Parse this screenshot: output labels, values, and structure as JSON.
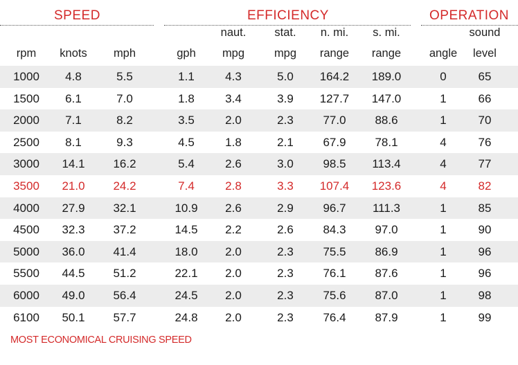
{
  "groups": {
    "speed": "SPEED",
    "efficiency": "EFFICIENCY",
    "operation": "OPERATION"
  },
  "headers": {
    "top": [
      "",
      "",
      "",
      "",
      "naut.",
      "stat.",
      "n. mi.",
      "s. mi.",
      "",
      "sound"
    ],
    "bottom": [
      "rpm",
      "knots",
      "mph",
      "gph",
      "mpg",
      "mpg",
      "range",
      "range",
      "angle",
      "level"
    ]
  },
  "rows": [
    [
      "1000",
      "4.8",
      "5.5",
      "1.1",
      "4.3",
      "5.0",
      "164.2",
      "189.0",
      "0",
      "65"
    ],
    [
      "1500",
      "6.1",
      "7.0",
      "1.8",
      "3.4",
      "3.9",
      "127.7",
      "147.0",
      "1",
      "66"
    ],
    [
      "2000",
      "7.1",
      "8.2",
      "3.5",
      "2.0",
      "2.3",
      "77.0",
      "88.6",
      "1",
      "70"
    ],
    [
      "2500",
      "8.1",
      "9.3",
      "4.5",
      "1.8",
      "2.1",
      "67.9",
      "78.1",
      "4",
      "76"
    ],
    [
      "3000",
      "14.1",
      "16.2",
      "5.4",
      "2.6",
      "3.0",
      "98.5",
      "113.4",
      "4",
      "77"
    ],
    [
      "3500",
      "21.0",
      "24.2",
      "7.4",
      "2.8",
      "3.3",
      "107.4",
      "123.6",
      "4",
      "82"
    ],
    [
      "4000",
      "27.9",
      "32.1",
      "10.9",
      "2.6",
      "2.9",
      "96.7",
      "111.3",
      "1",
      "85"
    ],
    [
      "4500",
      "32.3",
      "37.2",
      "14.5",
      "2.2",
      "2.6",
      "84.3",
      "97.0",
      "1",
      "90"
    ],
    [
      "5000",
      "36.0",
      "41.4",
      "18.0",
      "2.0",
      "2.3",
      "75.5",
      "86.9",
      "1",
      "96"
    ],
    [
      "5500",
      "44.5",
      "51.2",
      "22.1",
      "2.0",
      "2.3",
      "76.1",
      "87.6",
      "1",
      "96"
    ],
    [
      "6000",
      "49.0",
      "56.4",
      "24.5",
      "2.0",
      "2.3",
      "75.6",
      "87.0",
      "1",
      "98"
    ],
    [
      "6100",
      "50.1",
      "57.7",
      "24.8",
      "2.0",
      "2.3",
      "76.4",
      "87.9",
      "1",
      "99"
    ]
  ],
  "highlight_row_index": 5,
  "highlight_color": "#d42a2a",
  "footer_note": "MOST ECONOMICAL CRUISING SPEED"
}
